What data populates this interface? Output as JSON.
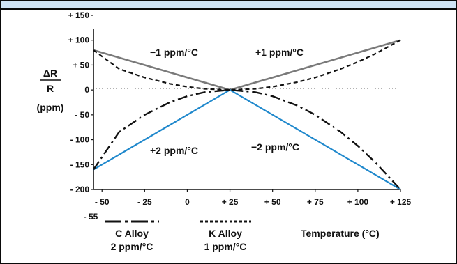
{
  "chart_data": {
    "type": "line",
    "x_ticks": [
      "- 50",
      "- 25",
      "0",
      "+ 25",
      "+ 50",
      "+ 75",
      "+ 100",
      "+ 125"
    ],
    "x_tick_values": [
      -50,
      -25,
      0,
      25,
      50,
      75,
      100,
      125
    ],
    "x_extra_label": "- 55",
    "xlim": [
      -55,
      125
    ],
    "y_ticks": [
      "+ 150",
      "+ 100",
      "+ 50",
      "0",
      "- 50",
      "- 100",
      "- 150",
      "- 200"
    ],
    "y_tick_values": [
      150,
      100,
      50,
      0,
      -50,
      -100,
      -150,
      -200
    ],
    "ylim": [
      -200,
      150
    ],
    "ylabel_top": "ΔR",
    "ylabel_bottom": "R",
    "ylabel_unit": "(ppm)",
    "xlabel": "Temperature (°C)",
    "grid": false,
    "reference_point": [
      25,
      0
    ],
    "series": [
      {
        "key": "plus1",
        "style": "solid-gray",
        "color": "#7a7a7a",
        "x": [
          25,
          125
        ],
        "y": [
          0,
          100
        ]
      },
      {
        "key": "minus1",
        "style": "solid-gray",
        "color": "#7a7a7a",
        "x": [
          -55,
          25
        ],
        "y": [
          80,
          0
        ]
      },
      {
        "key": "plus2",
        "style": "solid-blue",
        "color": "#1f88cc",
        "x": [
          -55,
          25
        ],
        "y": [
          -160,
          0
        ]
      },
      {
        "key": "minus2",
        "style": "solid-blue",
        "color": "#1f88cc",
        "x": [
          25,
          125
        ],
        "y": [
          0,
          -200
        ]
      },
      {
        "key": "k_alloy",
        "style": "dashed-black",
        "color": "#111111",
        "x": [
          -55,
          -40,
          -25,
          -10,
          0,
          10,
          25,
          40,
          50,
          65,
          75,
          90,
          100,
          110,
          125
        ],
        "y": [
          80,
          42.3,
          25,
          12.3,
          6.3,
          2.3,
          0,
          2.3,
          6.3,
          16,
          25,
          42.3,
          56.3,
          72.3,
          100
        ]
      },
      {
        "key": "c_alloy",
        "style": "dashdot-black",
        "color": "#111111",
        "x": [
          -55,
          -40,
          -25,
          -10,
          0,
          10,
          25,
          40,
          50,
          65,
          75,
          90,
          100,
          110,
          125
        ],
        "y": [
          -160,
          -84.5,
          -50,
          -24.5,
          -12.5,
          -4.5,
          0,
          -4.5,
          -12.5,
          -32,
          -50,
          -84.5,
          -112.5,
          -144.5,
          -200
        ]
      }
    ],
    "annotations": [
      "−1 ppm/°C",
      "+1 ppm/°C",
      "+2 ppm/°C",
      "−2 ppm/°C"
    ],
    "legend": [
      {
        "name": "C Alloy",
        "sub": "2 ppm/°C",
        "style": "dashdot-black"
      },
      {
        "name": "K Alloy",
        "sub": "1 ppm/°C",
        "style": "dashed-black"
      }
    ]
  }
}
